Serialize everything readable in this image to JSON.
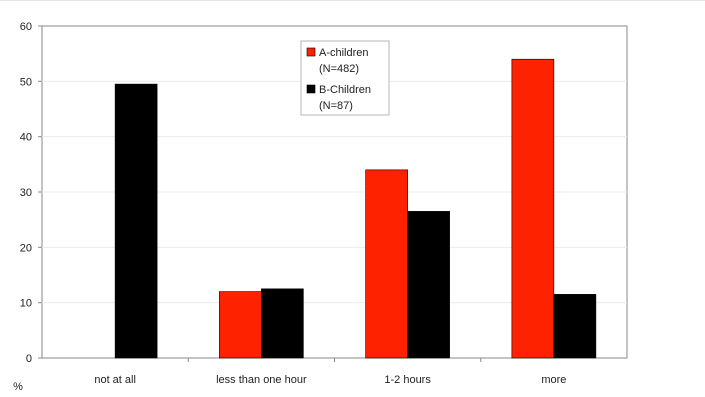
{
  "chart_data": {
    "type": "bar",
    "categories": [
      "not at all",
      "less than one hour",
      "1-2 hours",
      "more"
    ],
    "series": [
      {
        "name_lines": [
          "A-children",
          "(N=482)"
        ],
        "color": "#ff2200",
        "values": [
          0,
          12,
          34,
          54
        ]
      },
      {
        "name_lines": [
          "B-Children",
          "(N=87)"
        ],
        "color": "#000000",
        "values": [
          49.5,
          12.5,
          26.5,
          11.5
        ]
      }
    ],
    "ylim": [
      0,
      60
    ],
    "yticks": [
      0,
      10,
      20,
      30,
      40,
      50,
      60
    ],
    "ylabel": "%",
    "grid": true,
    "legend": "top-center"
  }
}
